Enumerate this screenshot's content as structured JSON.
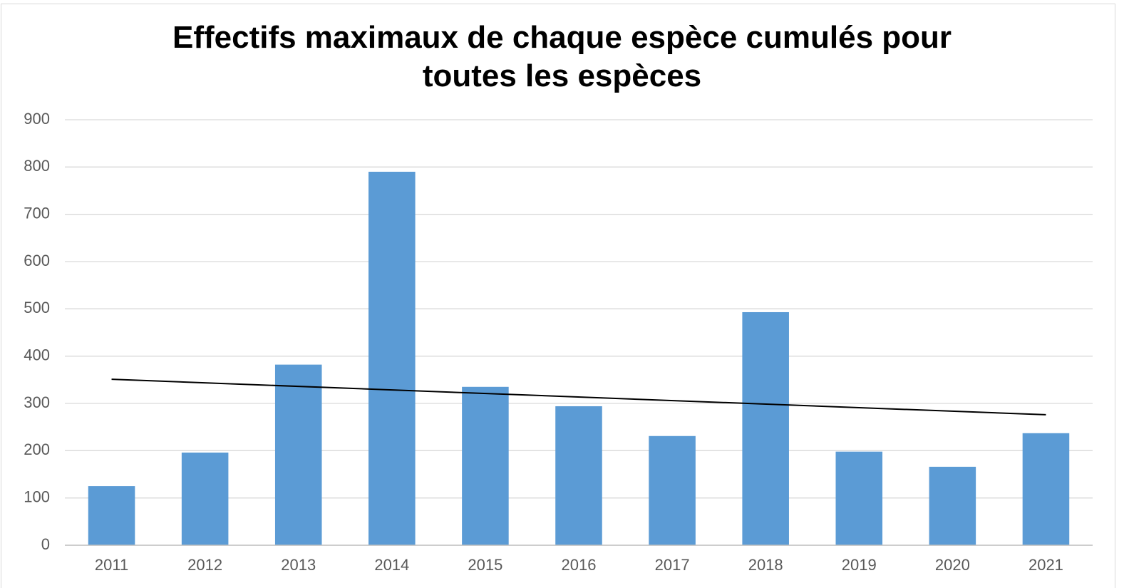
{
  "chart_data": {
    "type": "bar",
    "title": "Effectifs maximaux de chaque espèce cumulés pour toutes les espèces",
    "categories": [
      "2011",
      "2012",
      "2013",
      "2014",
      "2015",
      "2016",
      "2017",
      "2018",
      "2019",
      "2020",
      "2021"
    ],
    "values": [
      125,
      196,
      382,
      790,
      335,
      294,
      231,
      493,
      198,
      166,
      237
    ],
    "color": "#5b9bd5",
    "trendline": {
      "values": [
        351,
        276
      ],
      "color": "#000000"
    },
    "ylim": [
      0,
      900
    ],
    "yticks": [
      0,
      100,
      200,
      300,
      400,
      500,
      600,
      700,
      800,
      900
    ],
    "grid": true
  }
}
